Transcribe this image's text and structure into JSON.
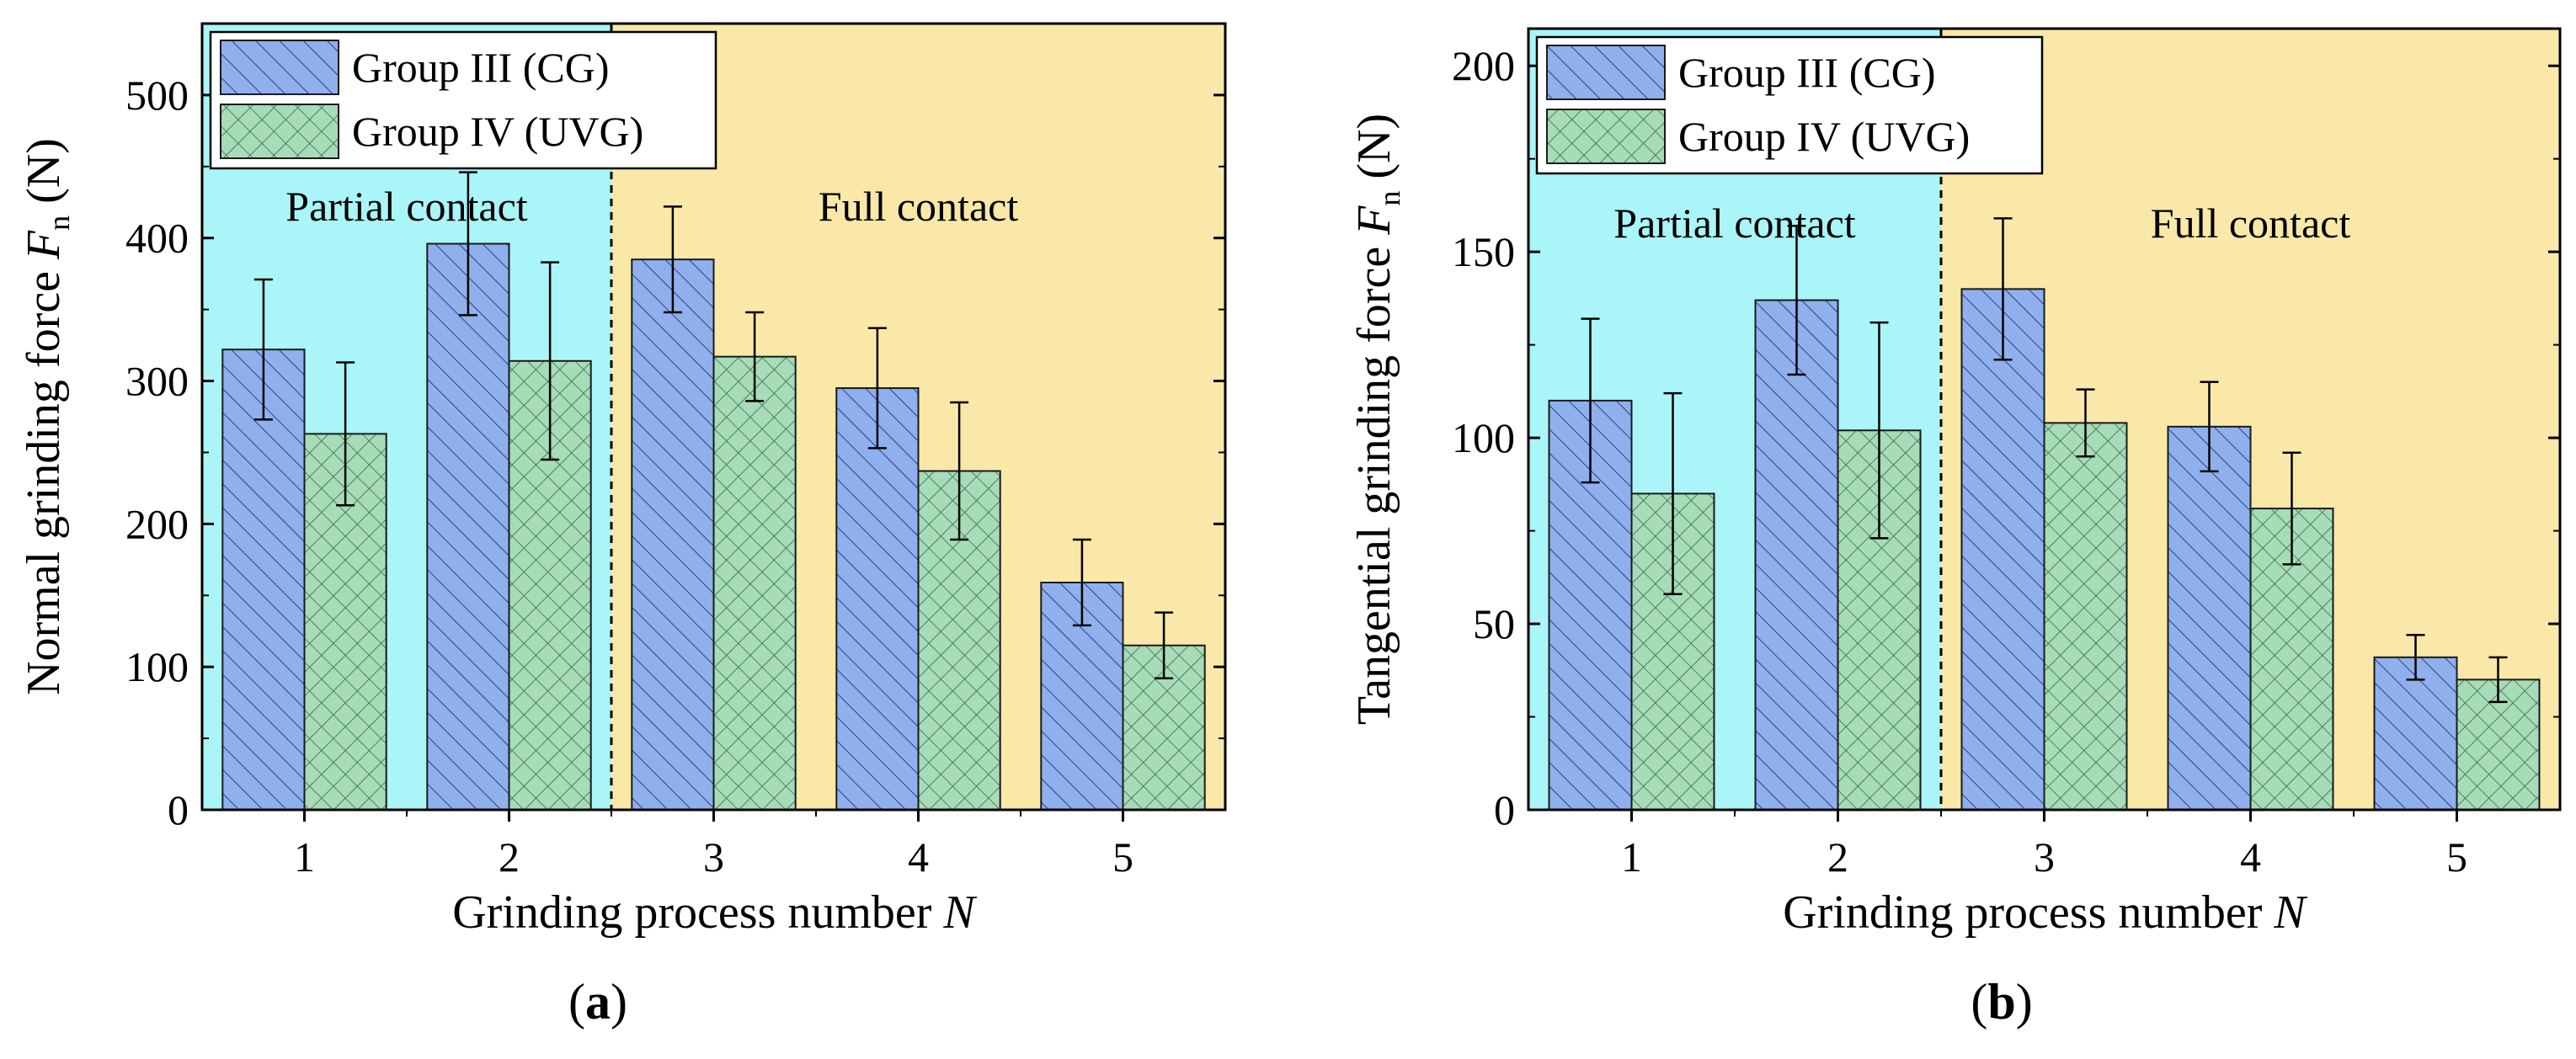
{
  "chart_data": [
    {
      "type": "bar",
      "panel_label": "a",
      "xlabel": "Grinding process number",
      "xlabel_var": "N",
      "ylabel": "Normal grinding force",
      "ylabel_var": "F",
      "ylabel_sub": "n",
      "ylabel_unit": "(N)",
      "categories": [
        "1",
        "2",
        "3",
        "4",
        "5"
      ],
      "ylim": [
        0,
        550
      ],
      "yticks": [
        0,
        100,
        200,
        300,
        400,
        500
      ],
      "series": [
        {
          "name": "Group III (CG)",
          "values": [
            322,
            396,
            385,
            295,
            159
          ],
          "errors": [
            49,
            50,
            37,
            42,
            30
          ]
        },
        {
          "name": "Group IV (UVG)",
          "values": [
            263,
            314,
            317,
            237,
            115
          ],
          "errors": [
            50,
            69,
            31,
            48,
            23
          ]
        }
      ],
      "regions": [
        {
          "label": "Partial contact",
          "from": 0.5,
          "to": 2.5,
          "color": "#aaf5f8"
        },
        {
          "label": "Full contact",
          "from": 2.5,
          "to": 5.5,
          "color": "#f9e8a8"
        }
      ],
      "legend_position": "top-left"
    },
    {
      "type": "bar",
      "panel_label": "b",
      "xlabel": "Grinding process number",
      "xlabel_var": "N",
      "ylabel": "Tangential grinding force",
      "ylabel_var": "F",
      "ylabel_sub": "n",
      "ylabel_unit": "(N)",
      "categories": [
        "1",
        "2",
        "3",
        "4",
        "5"
      ],
      "ylim": [
        0,
        210
      ],
      "yticks": [
        0,
        50,
        100,
        150,
        200
      ],
      "series": [
        {
          "name": "Group III (CG)",
          "values": [
            110,
            137,
            140,
            103,
            41
          ],
          "errors": [
            22,
            20,
            19,
            12,
            6
          ]
        },
        {
          "name": "Group IV (UVG)",
          "values": [
            85,
            102,
            104,
            81,
            35
          ],
          "errors": [
            27,
            29,
            9,
            15,
            6
          ]
        }
      ],
      "regions": [
        {
          "label": "Partial contact",
          "from": 0.5,
          "to": 2.5,
          "color": "#aaf5f8"
        },
        {
          "label": "Full contact",
          "from": 2.5,
          "to": 5.5,
          "color": "#f9e8a8"
        }
      ],
      "legend_position": "top-left"
    }
  ],
  "colors": {
    "cg_fill": "#8fb0ec",
    "uvg_fill": "#a8dbb8",
    "partial_bg": "#aaf5f8",
    "full_bg": "#f9e8a8"
  }
}
